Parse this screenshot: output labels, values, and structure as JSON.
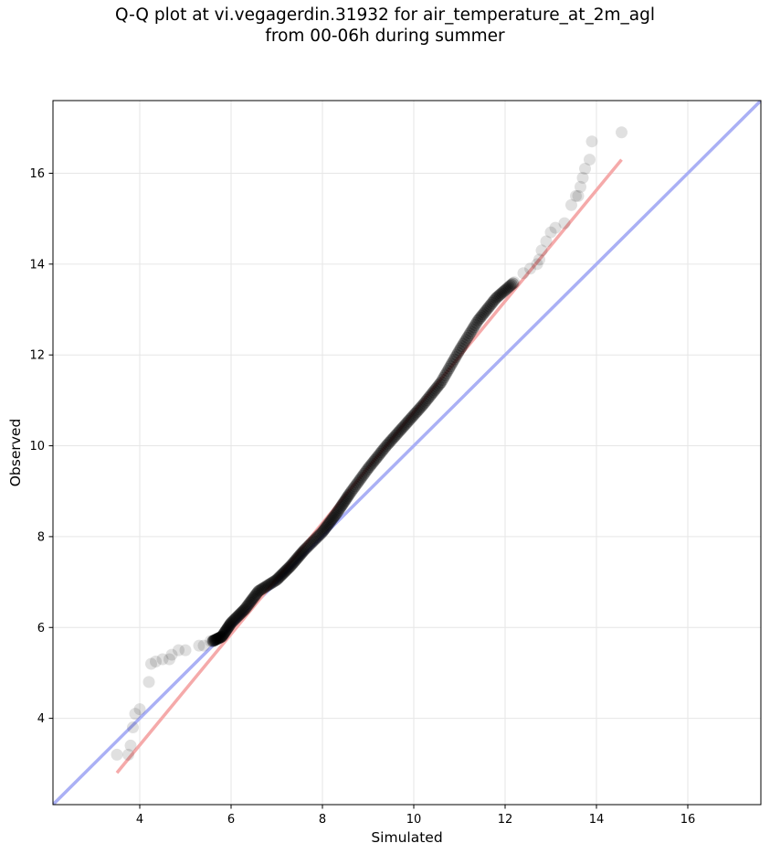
{
  "chart_data": {
    "type": "scatter",
    "title_line1": "Q-Q plot at vi.vegagerdin.31932 for air_temperature_at_2m_agl",
    "title_line2": "from 00-06h during summer",
    "xlabel": "Simulated",
    "ylabel": "Observed",
    "xlim": [
      2.1,
      17.6
    ],
    "ylim": [
      2.1,
      17.6
    ],
    "xticks": [
      4,
      6,
      8,
      10,
      12,
      14,
      16
    ],
    "yticks": [
      4,
      6,
      8,
      10,
      12,
      14,
      16
    ],
    "grid": true,
    "reference_line": {
      "label": "y = x",
      "color": "#aab0f5",
      "from": [
        2.1,
        2.1
      ],
      "to": [
        17.6,
        17.6
      ]
    },
    "fit_line": {
      "color": "#f5aaaa",
      "from": [
        3.5,
        2.8
      ],
      "to": [
        14.55,
        16.3
      ]
    },
    "points_color": "#000000",
    "tail_points": [
      [
        3.5,
        3.2
      ],
      [
        3.75,
        3.2
      ],
      [
        3.8,
        3.4
      ],
      [
        3.85,
        3.8
      ],
      [
        3.9,
        4.1
      ],
      [
        4.0,
        4.2
      ],
      [
        4.2,
        4.8
      ],
      [
        4.25,
        5.2
      ],
      [
        4.35,
        5.25
      ],
      [
        4.5,
        5.3
      ],
      [
        4.65,
        5.3
      ],
      [
        4.7,
        5.4
      ],
      [
        4.85,
        5.5
      ],
      [
        5.0,
        5.5
      ],
      [
        5.3,
        5.6
      ],
      [
        5.4,
        5.6
      ],
      [
        5.55,
        5.7
      ],
      [
        5.6,
        5.7
      ],
      [
        12.2,
        13.6
      ],
      [
        12.4,
        13.8
      ],
      [
        12.55,
        13.9
      ],
      [
        12.7,
        14.0
      ],
      [
        12.75,
        14.1
      ],
      [
        12.8,
        14.3
      ],
      [
        12.9,
        14.5
      ],
      [
        13.0,
        14.7
      ],
      [
        13.1,
        14.8
      ],
      [
        13.3,
        14.9
      ],
      [
        13.45,
        15.3
      ],
      [
        13.55,
        15.5
      ],
      [
        13.6,
        15.5
      ],
      [
        13.65,
        15.7
      ],
      [
        13.7,
        15.9
      ],
      [
        13.75,
        16.1
      ],
      [
        13.85,
        16.3
      ],
      [
        13.9,
        16.7
      ],
      [
        14.55,
        16.9
      ]
    ],
    "main_curve": [
      [
        5.6,
        5.7
      ],
      [
        5.8,
        5.8
      ],
      [
        6.0,
        6.1
      ],
      [
        6.3,
        6.4
      ],
      [
        6.6,
        6.8
      ],
      [
        7.0,
        7.05
      ],
      [
        7.3,
        7.35
      ],
      [
        7.6,
        7.7
      ],
      [
        8.0,
        8.1
      ],
      [
        8.3,
        8.5
      ],
      [
        8.6,
        8.95
      ],
      [
        9.0,
        9.5
      ],
      [
        9.4,
        10.0
      ],
      [
        9.8,
        10.45
      ],
      [
        10.2,
        10.9
      ],
      [
        10.6,
        11.4
      ],
      [
        11.0,
        12.1
      ],
      [
        11.4,
        12.75
      ],
      [
        11.8,
        13.25
      ],
      [
        12.2,
        13.6
      ]
    ]
  }
}
